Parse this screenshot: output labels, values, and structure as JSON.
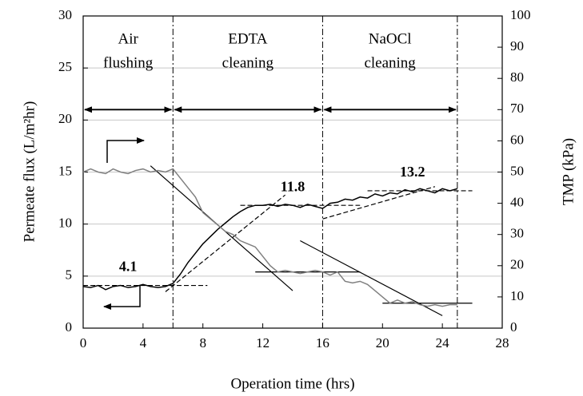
{
  "chart_data": {
    "type": "line",
    "x_label": "Operation time (hrs)",
    "y_label": "Permeate flux (L/m²hr)",
    "y2_label": "TMP (kPa)",
    "x": [
      0,
      0.5,
      1,
      1.5,
      2,
      2.5,
      3,
      3.5,
      4,
      4.5,
      5,
      5.5,
      6,
      6.5,
      7,
      7.5,
      8,
      8.5,
      9,
      9.5,
      10,
      10.5,
      11,
      11.5,
      12,
      12.5,
      13,
      13.5,
      14,
      14.5,
      15,
      15.5,
      16,
      16.5,
      17,
      17.5,
      18,
      18.5,
      19,
      19.5,
      20,
      20.5,
      21,
      21.5,
      22,
      22.5,
      23,
      23.5,
      24,
      24.5,
      25
    ],
    "series": [
      {
        "color": "#000000",
        "values": [
          4.0,
          3.9,
          4.1,
          3.7,
          4.0,
          4.1,
          3.9,
          4.0,
          4.2,
          4.0,
          3.9,
          4.0,
          4.3,
          5.2,
          6.3,
          7.2,
          8.1,
          8.8,
          9.5,
          10.1,
          10.7,
          11.2,
          11.6,
          11.8,
          11.8,
          11.9,
          11.7,
          11.9,
          11.8,
          11.6,
          11.9,
          11.7,
          11.5,
          12.0,
          12.1,
          12.4,
          12.3,
          12.6,
          12.5,
          12.9,
          12.7,
          13.0,
          12.9,
          13.3,
          13.1,
          13.4,
          13.2,
          13.0,
          13.4,
          13.2,
          13.4
        ]
      },
      {
        "color": "#808080",
        "axis": "y2",
        "values": [
          50,
          51,
          50,
          49.5,
          51,
          50,
          49.5,
          50.5,
          51,
          50,
          50.5,
          50,
          51,
          48,
          45,
          42,
          37,
          35,
          33,
          31,
          30,
          28,
          27,
          26,
          23,
          20,
          18,
          18.5,
          18,
          17.5,
          18,
          18.5,
          18,
          17,
          18,
          15,
          14.5,
          15,
          14,
          12,
          10,
          8,
          9,
          8,
          8.5,
          7.5,
          7,
          7.5,
          7,
          7.5,
          7.5
        ]
      }
    ],
    "xlim": [
      0,
      28
    ],
    "xticks": [
      0,
      4,
      8,
      12,
      16,
      20,
      24,
      28
    ],
    "ylim": [
      0,
      30
    ],
    "yticks": [
      0,
      5,
      10,
      15,
      20,
      25,
      30
    ],
    "y2lim": [
      0,
      100
    ],
    "y2ticks": [
      0,
      10,
      20,
      30,
      40,
      50,
      60,
      70,
      80,
      90,
      100
    ],
    "grid": true,
    "phases": [
      {
        "lines": [
          "Air",
          "flushing"
        ],
        "start": 0,
        "end": 6
      },
      {
        "lines": [
          "EDTA",
          "cleaning"
        ],
        "start": 6,
        "end": 16
      },
      {
        "lines": [
          "NaOCl",
          "cleaning"
        ],
        "start": 16,
        "end": 25
      }
    ],
    "phase_arrow_level": 21,
    "level_labels": [
      4.1,
      11.8,
      13.2
    ],
    "guides": [
      {
        "axis": "y2",
        "dash": false,
        "x": [
          4.5,
          14
        ],
        "y": [
          52,
          12
        ]
      },
      {
        "axis": "y2",
        "dash": false,
        "x": [
          11.5,
          18.5
        ],
        "y": [
          18,
          18
        ]
      },
      {
        "axis": "y2",
        "dash": false,
        "x": [
          14.5,
          24
        ],
        "y": [
          28,
          4
        ]
      },
      {
        "axis": "y2",
        "dash": false,
        "x": [
          20,
          26
        ],
        "y": [
          8,
          8
        ]
      },
      {
        "dash": true,
        "x": [
          0,
          8.3
        ],
        "y": [
          4.1,
          4.1
        ]
      },
      {
        "dash": true,
        "x": [
          5.5,
          13.5
        ],
        "y": [
          3.5,
          12.8
        ]
      },
      {
        "dash": true,
        "x": [
          10.5,
          18.5
        ],
        "y": [
          11.8,
          11.8
        ]
      },
      {
        "dash": true,
        "x": [
          16,
          23.5
        ],
        "y": [
          10.5,
          13.6
        ]
      },
      {
        "dash": true,
        "x": [
          19,
          26
        ],
        "y": [
          13.2,
          13.2
        ]
      }
    ]
  }
}
